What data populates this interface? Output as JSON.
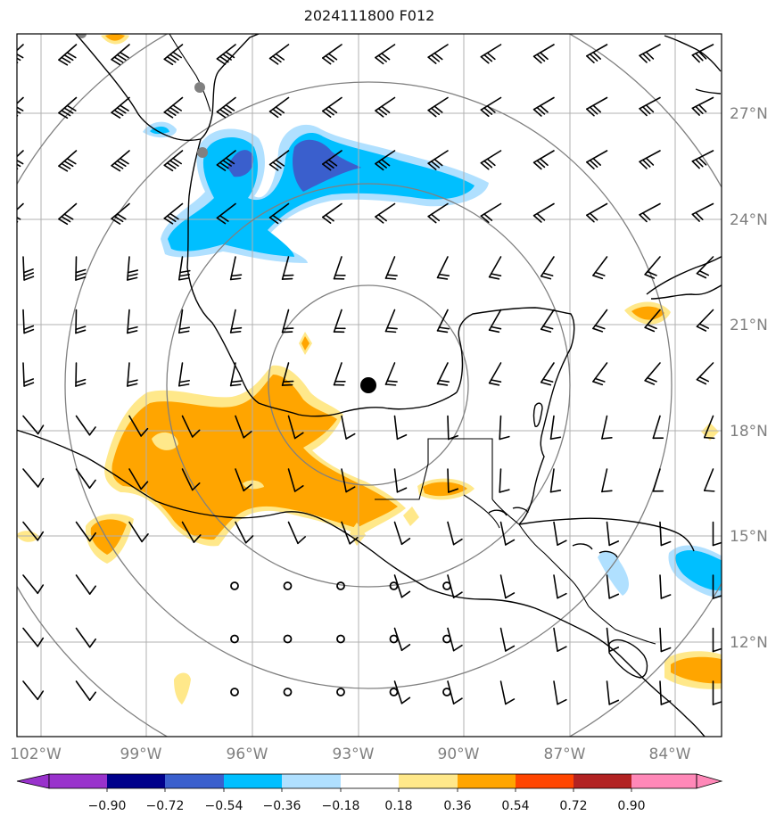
{
  "title": "2024111800 F012",
  "lon_labels": [
    "102°W",
    "99°W",
    "96°W",
    "93°W",
    "90°W",
    "87°W",
    "84°W"
  ],
  "lat_labels": [
    "27°N",
    "24°N",
    "21°N",
    "18°N",
    "15°N",
    "12°N"
  ],
  "colorbar": {
    "ticks": [
      "−0.90",
      "−0.72",
      "−0.54",
      "−0.36",
      "−0.18",
      "0.18",
      "0.36",
      "0.54",
      "0.72",
      "0.90"
    ],
    "colors": [
      "#9932cc",
      "#00008b",
      "#3a5fcd",
      "#00bfff",
      "#b0e0ff",
      "#ffffff",
      "#ffe88a",
      "#ffa500",
      "#ff4500",
      "#b22222",
      "#ff88b8"
    ]
  },
  "colors": {
    "grid": "#b0b0b0",
    "range_rings": "#808080",
    "coast": "#000000",
    "axis_label": "#808080"
  },
  "center_marker": "storm-center-dot"
}
